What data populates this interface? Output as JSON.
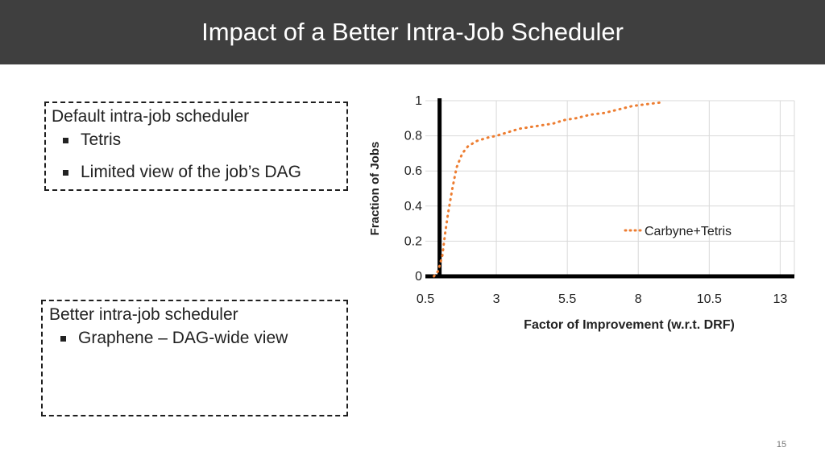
{
  "slide": {
    "title": "Impact of a Better Intra-Job Scheduler",
    "page_number": "15"
  },
  "left_boxes": [
    {
      "title": "Default intra-job scheduler",
      "bullets": [
        "Tetris",
        "Limited view of the job’s DAG"
      ]
    },
    {
      "title": "Better intra-job scheduler",
      "bullets": [
        "Graphene – DAG-wide view"
      ]
    }
  ],
  "chart_data": {
    "type": "line",
    "title": "",
    "xlabel": "Factor of Improvement (w.r.t. DRF)",
    "ylabel": "Fraction of Jobs",
    "xlim": [
      0.5,
      13.5
    ],
    "ylim": [
      0,
      1
    ],
    "x_ticks": [
      "0.5",
      "3",
      "5.5",
      "8",
      "10.5",
      "13"
    ],
    "x_tick_values": [
      0.5,
      3,
      5.5,
      8,
      10.5,
      13
    ],
    "y_ticks": [
      "0",
      "0.2",
      "0.4",
      "0.6",
      "0.8",
      "1"
    ],
    "y_tick_values": [
      0,
      0.2,
      0.4,
      0.6,
      0.8,
      1
    ],
    "grid": true,
    "legend_position": "right",
    "series": [
      {
        "name": "Carbyne+Tetris",
        "color": "#ED7D31",
        "style": "dotted",
        "x": [
          0.8,
          0.95,
          1.1,
          1.2,
          1.3,
          1.45,
          1.6,
          1.8,
          2.0,
          2.3,
          2.7,
          3.0,
          3.4,
          3.8,
          4.2,
          4.6,
          5.0,
          5.4,
          5.8,
          6.3,
          6.8,
          7.3,
          7.8,
          8.3,
          8.8
        ],
        "y": [
          0.0,
          0.03,
          0.12,
          0.25,
          0.36,
          0.5,
          0.62,
          0.7,
          0.74,
          0.77,
          0.79,
          0.8,
          0.82,
          0.84,
          0.85,
          0.86,
          0.87,
          0.89,
          0.9,
          0.92,
          0.93,
          0.95,
          0.97,
          0.98,
          0.99
        ]
      }
    ],
    "vertical_marker_x": 1.0
  }
}
